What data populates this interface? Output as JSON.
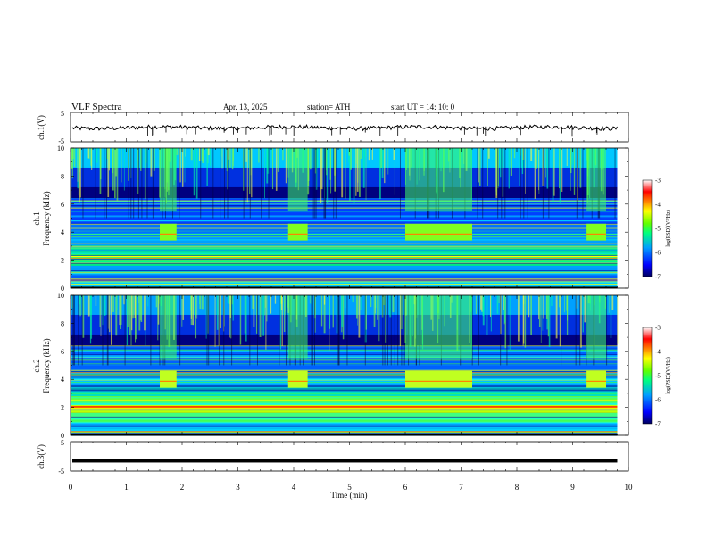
{
  "header": {
    "title": "VLF  Spectra",
    "date": "Apr. 13, 2025",
    "station": "station= ATH",
    "start": "start  UT  =    14: 10: 0"
  },
  "chart_data": [
    {
      "type": "line",
      "id": "ch1",
      "ylabel": "ch.1(V)",
      "ylim": [
        -5,
        5
      ],
      "yticks": [
        "5",
        "-5"
      ],
      "trace_color": "#000000",
      "description_level": -0.2,
      "xlim": [
        0,
        10
      ]
    },
    {
      "type": "heatmap",
      "id": "ch1-spec",
      "ylabel_line1": "ch.1",
      "ylabel_line2": "Frequency  (kHz)",
      "ylim": [
        0,
        10
      ],
      "yticks": [
        "0",
        "2",
        "4",
        "6",
        "8",
        "10"
      ],
      "xlim": [
        0,
        10
      ],
      "data_end_min": 9.8,
      "bursts_min": [
        [
          1.6,
          1.9
        ],
        [
          3.9,
          4.25
        ],
        [
          6.0,
          7.2
        ],
        [
          9.25,
          9.6
        ]
      ],
      "colorbar": {
        "label": "log(PSD)(V²/Hz)",
        "ticks": [
          "-3",
          "-4",
          "-5",
          "-6",
          "-7"
        ],
        "range": [
          -7,
          -3
        ]
      }
    },
    {
      "type": "heatmap",
      "id": "ch2-spec",
      "ylabel_line1": "ch.2",
      "ylabel_line2": "Frequency  (kHz)",
      "ylim": [
        0,
        10
      ],
      "yticks": [
        "0",
        "2",
        "4",
        "6",
        "8",
        "10"
      ],
      "xlim": [
        0,
        10
      ],
      "data_end_min": 9.8,
      "bursts_min": [
        [
          1.6,
          1.9
        ],
        [
          3.9,
          4.25
        ],
        [
          6.0,
          7.2
        ],
        [
          9.25,
          9.6
        ]
      ],
      "colorbar": {
        "label": "log(PSD)(V²/Hz)",
        "ticks": [
          "-3",
          "-4",
          "-5",
          "-6",
          "-7"
        ],
        "range": [
          -7,
          -3
        ]
      }
    },
    {
      "type": "line",
      "id": "ch3",
      "ylabel": "ch.3(V)",
      "ylim": [
        -5,
        5
      ],
      "yticks": [
        "5",
        "-5"
      ],
      "trace_level": -1.5,
      "xlim": [
        0,
        10
      ]
    }
  ],
  "xaxis": {
    "label": "Time  (min)",
    "ticks": [
      "0",
      "1",
      "2",
      "3",
      "4",
      "5",
      "6",
      "7",
      "8",
      "9",
      "10"
    ]
  }
}
